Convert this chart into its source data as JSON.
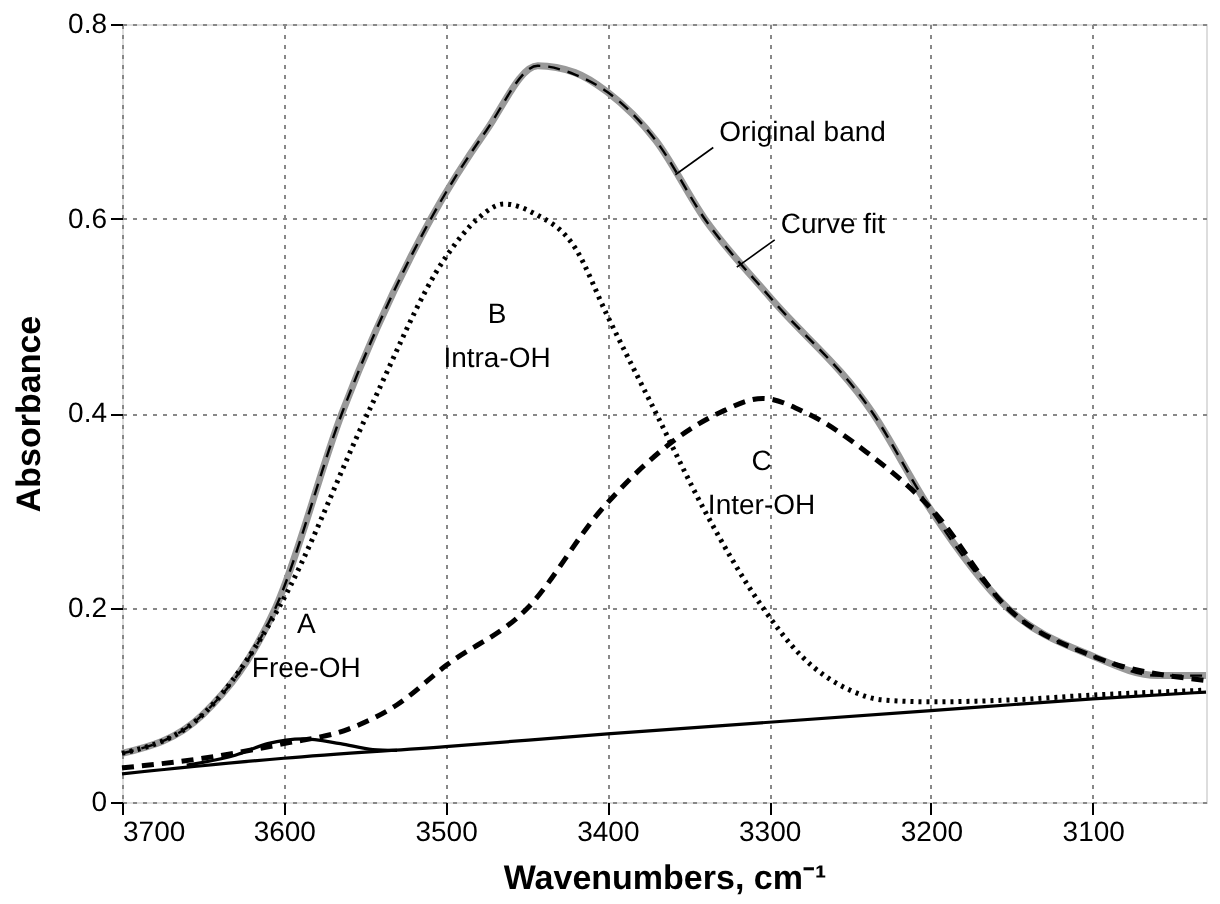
{
  "chart_data": {
    "type": "line",
    "xlabel": "Wavenumbers, cm⁻¹",
    "ylabel": "Absorbance",
    "xlim": [
      3700,
      3030
    ],
    "ylim": [
      0,
      0.8
    ],
    "xticks": [
      3700,
      3600,
      3500,
      3400,
      3300,
      3200,
      3100
    ],
    "yticks": [
      0,
      0.2,
      0.4,
      0.6,
      0.8
    ],
    "grid": true,
    "series": [
      {
        "color": "#999999",
        "line_style": "solid",
        "x": [
          3700,
          3650,
          3605,
          3564,
          3509,
          3475,
          3443,
          3420,
          3400,
          3370,
          3340,
          3300,
          3236,
          3200,
          3153,
          3100,
          3060,
          3030
        ],
        "values": [
          0.05,
          0.09,
          0.2,
          0.4,
          0.6,
          0.69,
          0.757,
          0.75,
          0.73,
          0.68,
          0.6,
          0.52,
          0.4,
          0.3,
          0.2,
          0.15,
          0.13,
          0.13
        ]
      },
      {
        "color": "#000000",
        "line_style": "dashed",
        "x": [
          3700,
          3650,
          3605,
          3564,
          3509,
          3475,
          3443,
          3420,
          3400,
          3370,
          3340,
          3300,
          3236,
          3200,
          3153,
          3100,
          3060,
          3030
        ],
        "values": [
          0.05,
          0.09,
          0.2,
          0.4,
          0.6,
          0.69,
          0.757,
          0.748,
          0.73,
          0.68,
          0.6,
          0.52,
          0.4,
          0.3,
          0.2,
          0.15,
          0.13,
          0.13
        ]
      },
      {
        "color": "#000000",
        "line_style": "dotted",
        "x": [
          3700,
          3650,
          3603,
          3548,
          3500,
          3480,
          3464,
          3445,
          3420,
          3400,
          3370,
          3340,
          3304,
          3280,
          3250,
          3230,
          3200,
          3150,
          3100,
          3030
        ],
        "values": [
          0.05,
          0.09,
          0.2,
          0.4,
          0.56,
          0.6,
          0.615,
          0.605,
          0.57,
          0.5,
          0.4,
          0.3,
          0.2,
          0.15,
          0.115,
          0.105,
          0.103,
          0.105,
          0.11,
          0.115
        ]
      },
      {
        "color": "#000000",
        "line_style": "dashed",
        "x": [
          3700,
          3650,
          3600,
          3560,
          3530,
          3500,
          3449,
          3404,
          3331,
          3304,
          3277,
          3240,
          3199,
          3153,
          3100,
          3030
        ],
        "values": [
          0.035,
          0.045,
          0.06,
          0.075,
          0.1,
          0.14,
          0.2,
          0.3,
          0.4,
          0.415,
          0.4,
          0.36,
          0.3,
          0.2,
          0.15,
          0.125
        ]
      },
      {
        "color": "#000000",
        "line_style": "solid",
        "x": [
          3660,
          3630,
          3610,
          3588,
          3565,
          3545,
          3530
        ],
        "values": [
          0.038,
          0.048,
          0.06,
          0.065,
          0.06,
          0.054,
          0.053
        ]
      },
      {
        "color": "#000000",
        "line_style": "solid",
        "x": [
          3700,
          3600,
          3500,
          3400,
          3300,
          3200,
          3100,
          3030
        ],
        "values": [
          0.029,
          0.045,
          0.057,
          0.07,
          0.082,
          0.094,
          0.106,
          0.113
        ]
      }
    ],
    "annotations": [
      {
        "text": "Original band",
        "x": 3358,
        "y": 0.645
      },
      {
        "text": "Curve fit",
        "x": 3320,
        "y": 0.55
      },
      "B\nIntra-OH",
      "C\nInter-OH",
      "A\nFree-OH"
    ]
  }
}
